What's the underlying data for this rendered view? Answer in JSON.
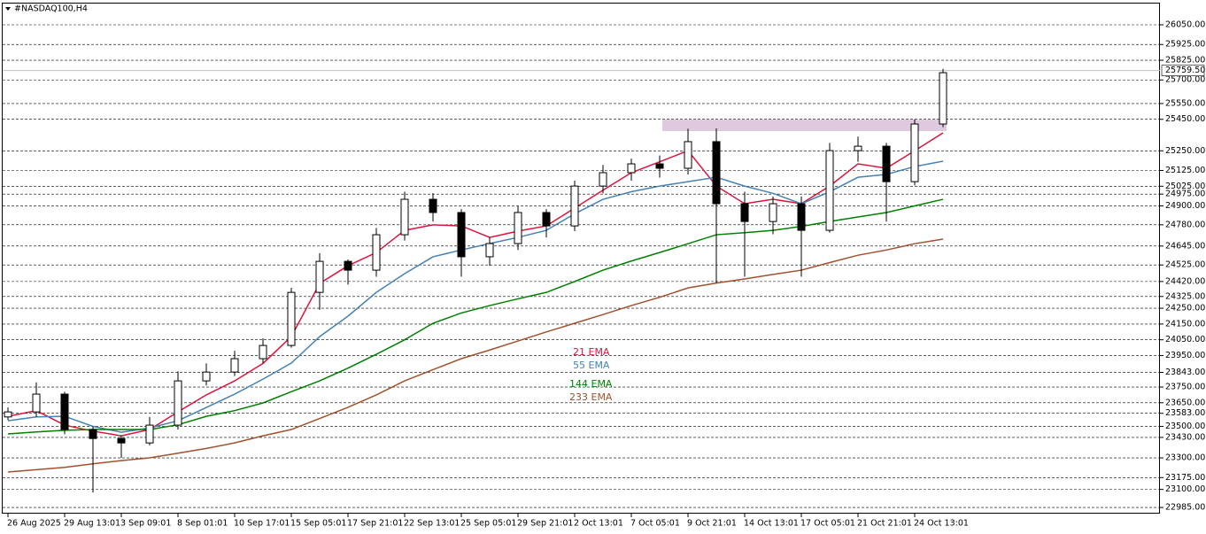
{
  "chart_data": {
    "type": "candlestick",
    "title": "#NASDAQ100,H4",
    "categories": [
      "26 Aug 2025",
      null,
      "29 Aug 13:01",
      null,
      "3 Sep 09:01",
      null,
      "8 Sep 01:01",
      null,
      "10 Sep 17:01",
      null,
      "15 Sep 05:01",
      null,
      "17 Sep 21:01",
      null,
      "22 Sep 13:01",
      null,
      "25 Sep 05:01",
      null,
      "29 Sep 21:01",
      null,
      "2 Oct 13:01",
      null,
      "7 Oct 05:01",
      null,
      "9 Oct 21:01",
      null,
      "14 Oct 13:01",
      null,
      "17 Oct 05:01",
      null,
      "21 Oct 21:01",
      null,
      "24 Oct 13:01",
      null
    ],
    "open": [
      23560,
      23592,
      23705,
      23480,
      23423,
      23395,
      23508,
      23789,
      23845,
      23930,
      24014,
      24351,
      24548,
      24492,
      24717,
      24942,
      24858,
      24577,
      24661,
      24858,
      24773,
      25026,
      25111,
      25167,
      25139,
      25308,
      24914,
      24801,
      24914,
      24745,
      25251,
      25279,
      25054,
      25420
    ],
    "high": [
      23620,
      23780,
      23720,
      23500,
      23440,
      23560,
      23850,
      23900,
      23980,
      24060,
      24380,
      24600,
      24560,
      24760,
      24990,
      24980,
      24880,
      24700,
      24900,
      24880,
      25060,
      25160,
      25200,
      25220,
      25390,
      25392,
      24990,
      24960,
      24960,
      25300,
      25340,
      25300,
      25450,
      25770
    ],
    "low": [
      23540,
      23560,
      23450,
      23080,
      23300,
      23380,
      23480,
      23760,
      23820,
      23900,
      24000,
      24240,
      24400,
      24450,
      24680,
      24800,
      24450,
      24520,
      24620,
      24700,
      24740,
      24980,
      25060,
      25080,
      25100,
      24410,
      24450,
      24720,
      24450,
      24730,
      25180,
      24800,
      25030,
      25400
    ],
    "close": [
      23592,
      23705,
      23480,
      23423,
      23395,
      23508,
      23789,
      23845,
      23930,
      24014,
      24351,
      24548,
      24492,
      24717,
      24942,
      24858,
      24577,
      24661,
      24858,
      24773,
      25026,
      25111,
      25167,
      25139,
      25308,
      24914,
      24801,
      24914,
      24745,
      25251,
      25279,
      25054,
      25420,
      25746
    ],
    "series": [
      {
        "name": "21 EMA",
        "color": "#dc143c",
        "values": [
          23564,
          23600,
          23508,
          23470,
          23440,
          23480,
          23592,
          23700,
          23789,
          23900,
          24070,
          24408,
          24520,
          24604,
          24745,
          24780,
          24773,
          24700,
          24740,
          24773,
          24886,
          25000,
          25111,
          25180,
          25251,
          25026,
          24914,
          24942,
          24914,
          25026,
          25167,
          25139,
          25250,
          25364
        ]
      },
      {
        "name": "55 EMA",
        "color": "#4682b4",
        "values": [
          23536,
          23560,
          23564,
          23500,
          23463,
          23490,
          23536,
          23620,
          23705,
          23800,
          23902,
          24070,
          24200,
          24351,
          24470,
          24577,
          24620,
          24661,
          24700,
          24745,
          24850,
          24942,
          24990,
          25026,
          25054,
          25082,
          25026,
          24980,
          24914,
          24990,
          25082,
          25100,
          25150,
          25184
        ]
      },
      {
        "name": "144 EMA",
        "color": "#008000",
        "values": [
          23452,
          23465,
          23475,
          23480,
          23480,
          23480,
          23510,
          23564,
          23600,
          23649,
          23720,
          23789,
          23870,
          23958,
          24050,
          24155,
          24220,
          24267,
          24310,
          24351,
          24420,
          24492,
          24550,
          24604,
          24660,
          24717,
          24730,
          24745,
          24770,
          24801,
          24830,
          24858,
          24900,
          24942
        ]
      },
      {
        "name": "233 EMA",
        "color": "#a0522d",
        "values": [
          23210,
          23225,
          23240,
          23262,
          23283,
          23300,
          23330,
          23360,
          23395,
          23440,
          23480,
          23550,
          23621,
          23700,
          23789,
          23860,
          23930,
          23985,
          24042,
          24100,
          24155,
          24210,
          24267,
          24320,
          24379,
          24410,
          24436,
          24465,
          24492,
          24540,
          24587,
          24620,
          24660,
          24689
        ]
      }
    ],
    "zone": [
      25375,
      25448
    ],
    "price": {
      "value": 25759.5,
      "label": "25759.50"
    },
    "ylim": [
      22946,
      26185
    ],
    "yticks": [
      {
        "value": 26050,
        "label": "26050.00"
      },
      {
        "value": 25925,
        "label": "25925.00"
      },
      {
        "value": 25825,
        "label": "25825.00"
      },
      {
        "value": 25700,
        "label": "25700.00"
      },
      {
        "value": 25550,
        "label": "25550.00"
      },
      {
        "value": 25450,
        "label": "25450.00"
      },
      {
        "value": 25250,
        "label": "25250.00"
      },
      {
        "value": 25125,
        "label": "25125.00"
      },
      {
        "value": 25025,
        "label": "25025.00"
      },
      {
        "value": 24975,
        "label": "24975.00"
      },
      {
        "value": 24900,
        "label": "24900.00"
      },
      {
        "value": 24780,
        "label": "24780.00"
      },
      {
        "value": 24645,
        "label": "24645.00"
      },
      {
        "value": 24525,
        "label": "24525.00"
      },
      {
        "value": 24420,
        "label": "24420.00"
      },
      {
        "value": 24325,
        "label": "24325.00"
      },
      {
        "value": 24250,
        "label": "24250.00"
      },
      {
        "value": 24150,
        "label": "24150.00"
      },
      {
        "value": 24050,
        "label": "24050.00"
      },
      {
        "value": 23950,
        "label": "23950.00"
      },
      {
        "value": 23843,
        "label": "23843.00"
      },
      {
        "value": 23750,
        "label": "23750.00"
      },
      {
        "value": 23650,
        "label": "23650.00"
      },
      {
        "value": 23583,
        "label": "23583.00"
      },
      {
        "value": 23500,
        "label": "23500.00"
      },
      {
        "value": 23430,
        "label": "23430.00"
      },
      {
        "value": 23300,
        "label": "23300.00"
      },
      {
        "value": 23175,
        "label": "23175.00"
      },
      {
        "value": 23100,
        "label": "23100.00"
      },
      {
        "value": 22985,
        "label": "22985.00"
      }
    ],
    "grid": true
  }
}
